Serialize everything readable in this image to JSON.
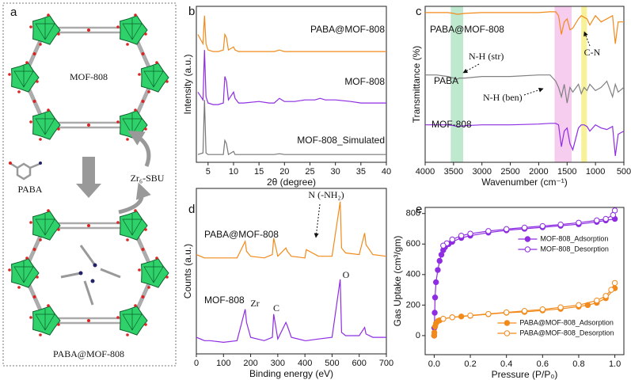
{
  "schematic": {
    "label": "a",
    "texts": [
      "MOF-808",
      "PABA",
      "Zr₆-SBU",
      "PABA@MOF-808"
    ]
  },
  "chart_data": [
    {
      "type": "line",
      "panel_label": "b",
      "xlabel": "2θ (degree)",
      "ylabel": "Intensity (a.u.)",
      "xlim": [
        2.7,
        40
      ],
      "xticks": [
        5,
        10,
        15,
        20,
        25,
        30,
        35,
        40
      ],
      "ylim": [
        0,
        100
      ],
      "x": [
        3,
        4,
        4.3,
        4.6,
        5,
        6,
        7,
        8,
        8.3,
        8.6,
        9,
        10,
        10.3,
        11,
        12,
        15,
        17,
        18,
        19,
        20,
        22,
        24,
        26,
        27,
        28,
        30,
        33,
        35,
        38,
        40
      ],
      "series": [
        {
          "name": "PABA@MOF-808",
          "color": "#f28a1b",
          "values": [
            82,
            76,
            94,
            76,
            72,
            71,
            71,
            72,
            82,
            80,
            72,
            74,
            72,
            71,
            71,
            71,
            71,
            71,
            72,
            71,
            71,
            71,
            71,
            71,
            71,
            71,
            71,
            71,
            71,
            71
          ]
        },
        {
          "name": "MOF-808",
          "color": "#8e2de2",
          "values": [
            45,
            40,
            72,
            42,
            38,
            37,
            37,
            38,
            55,
            52,
            40,
            45,
            41,
            38,
            38,
            39,
            38,
            38,
            41,
            39,
            39,
            40,
            40,
            41,
            40,
            40,
            39,
            38,
            38,
            38
          ]
        },
        {
          "name": "MOF-808_Simulated",
          "color": "#777777",
          "values": [
            5,
            6,
            40,
            6,
            5,
            5,
            5,
            5,
            14,
            12,
            5,
            7,
            5,
            5,
            5,
            5,
            5,
            5,
            5.5,
            5,
            5,
            5,
            5,
            5,
            5,
            5,
            5,
            5,
            5,
            5
          ]
        }
      ]
    },
    {
      "type": "line",
      "panel_label": "c",
      "xlabel": "Wavenumber (cm⁻¹)",
      "ylabel": "Transmittance (%)",
      "xlim": [
        4000,
        500
      ],
      "xticks": [
        4000,
        3500,
        3000,
        2500,
        2000,
        1500,
        1000,
        500
      ],
      "ylim": [
        0,
        100
      ],
      "bands": [
        {
          "range": [
            3550,
            3330
          ],
          "color": "#bfe9cf"
        },
        {
          "range": [
            1720,
            1420
          ],
          "color": "#f6cdef"
        },
        {
          "range": [
            1250,
            1150
          ],
          "color": "#f7f29a"
        }
      ],
      "annotations": [
        "N-H (str)",
        "C-N",
        "N-H (ben)"
      ],
      "x": [
        4000,
        3800,
        3600,
        3500,
        3450,
        3400,
        3300,
        3000,
        2800,
        2500,
        2000,
        1800,
        1700,
        1650,
        1600,
        1550,
        1500,
        1450,
        1400,
        1300,
        1250,
        1200,
        1150,
        1100,
        1000,
        900,
        800,
        700,
        650,
        600,
        500
      ],
      "series": [
        {
          "name": "PABA@MOF-808",
          "color": "#f28a1b",
          "values": [
            96,
            96,
            96,
            95.5,
            95,
            95,
            95.5,
            96,
            96,
            96,
            96,
            96.5,
            96.5,
            94,
            82,
            90,
            92,
            85,
            86,
            92,
            94,
            93,
            92,
            88,
            94,
            90,
            92,
            94,
            76,
            90,
            90
          ]
        },
        {
          "name": "PABA",
          "color": "#808080",
          "values": [
            56,
            56,
            55,
            54,
            53,
            54,
            54,
            55,
            55,
            55,
            56,
            56,
            52,
            48,
            42,
            50,
            38,
            48,
            45,
            50,
            44,
            48,
            46,
            50,
            46,
            48,
            52,
            42,
            50,
            45,
            48
          ]
        },
        {
          "name": "MOF-808",
          "color": "#8e2de2",
          "values": [
            24,
            24,
            24,
            23.5,
            23,
            23,
            23.5,
            24,
            24,
            24,
            24.5,
            25,
            25,
            24,
            10,
            20,
            22,
            12,
            8,
            22,
            24,
            24,
            23,
            20,
            24,
            22,
            21,
            23,
            4,
            18,
            20
          ]
        }
      ]
    },
    {
      "type": "line",
      "panel_label": "d",
      "xlabel": "Binding energy (eV)",
      "ylabel": "Counts (a.u.)",
      "xlim": [
        0,
        700
      ],
      "xticks": [
        0,
        100,
        200,
        300,
        400,
        500,
        600,
        700
      ],
      "ylim": [
        0,
        100
      ],
      "annotations": [
        "N (-NH₂)",
        "Zr",
        "C",
        "O"
      ],
      "x": [
        0,
        30,
        50,
        100,
        150,
        180,
        185,
        200,
        250,
        280,
        285,
        300,
        330,
        335,
        350,
        400,
        405,
        450,
        500,
        530,
        535,
        550,
        600,
        620,
        625,
        650,
        700
      ],
      "series": [
        {
          "name": "PABA@MOF-808",
          "color": "#f28a1b",
          "values": [
            60,
            58,
            58,
            58,
            58,
            68,
            62,
            59,
            58,
            60,
            70,
            59,
            64,
            62,
            59,
            58,
            63,
            59,
            59,
            92,
            64,
            61,
            60,
            73,
            66,
            60,
            59
          ]
        },
        {
          "name": "MOF-808",
          "color": "#8e2de2",
          "values": [
            10,
            8,
            8,
            7,
            8,
            27,
            19,
            10,
            8,
            10,
            24,
            9,
            19,
            17,
            10,
            8,
            8,
            9,
            10,
            45,
            13,
            11,
            11,
            16,
            12,
            10,
            10
          ]
        }
      ]
    },
    {
      "type": "line",
      "panel_label": "e",
      "markers": true,
      "xlabel": "Pressure (P/P₀)",
      "ylabel": "Gas Uptake (cm³/gm)",
      "xlim": [
        -0.05,
        1.05
      ],
      "xticks": [
        {
          "value": 0,
          "label": "0.0"
        },
        0.2,
        0.4,
        0.6,
        0.8,
        {
          "value": 1,
          "label": "1.0"
        }
      ],
      "ylim": [
        -125,
        840
      ],
      "yticks": [
        0,
        200,
        400,
        600,
        800
      ],
      "series": [
        {
          "name": "MOF-808_Adsorption",
          "color": "#8e2de2",
          "marker": "filled",
          "legend": "upper right",
          "x": [
            0,
            0.001,
            0.003,
            0.005,
            0.01,
            0.02,
            0.03,
            0.04,
            0.05,
            0.06,
            0.08,
            0.1,
            0.15,
            0.2,
            0.3,
            0.4,
            0.5,
            0.6,
            0.7,
            0.8,
            0.9,
            0.95,
            1.0
          ],
          "values": [
            0,
            50,
            150,
            250,
            350,
            430,
            490,
            530,
            560,
            580,
            600,
            615,
            640,
            655,
            675,
            690,
            700,
            710,
            720,
            730,
            745,
            755,
            765
          ]
        },
        {
          "name": "MOF-808_Desorption",
          "color": "#8e2de2",
          "marker": "open",
          "legend": "upper right",
          "x": [
            1.0,
            0.99,
            0.95,
            0.9,
            0.8,
            0.7,
            0.6,
            0.5,
            0.4,
            0.3,
            0.2,
            0.15,
            0.1,
            0.07,
            0.05
          ],
          "values": [
            820,
            790,
            765,
            755,
            740,
            728,
            718,
            708,
            698,
            685,
            668,
            655,
            630,
            605,
            590
          ]
        },
        {
          "name": "PABA@MOF-808_Adsorption",
          "color": "#f28a1b",
          "marker": "filled",
          "legend": "lower right",
          "x": [
            0,
            0.001,
            0.005,
            0.01,
            0.02,
            0.03,
            0.05,
            0.1,
            0.15,
            0.2,
            0.3,
            0.4,
            0.5,
            0.6,
            0.7,
            0.8,
            0.85,
            0.9,
            0.95,
            1.0
          ],
          "values": [
            0,
            20,
            60,
            80,
            95,
            100,
            110,
            120,
            125,
            130,
            140,
            150,
            155,
            165,
            175,
            190,
            200,
            215,
            245,
            310
          ]
        },
        {
          "name": "PABA@MOF-808_Desorption",
          "color": "#f28a1b",
          "marker": "open",
          "legend": "lower right",
          "x": [
            1.0,
            0.98,
            0.95,
            0.9,
            0.8,
            0.7,
            0.6,
            0.5,
            0.4,
            0.3,
            0.2,
            0.1,
            0.05
          ],
          "values": [
            345,
            300,
            260,
            230,
            200,
            185,
            172,
            162,
            152,
            142,
            132,
            120,
            110
          ]
        }
      ]
    }
  ]
}
